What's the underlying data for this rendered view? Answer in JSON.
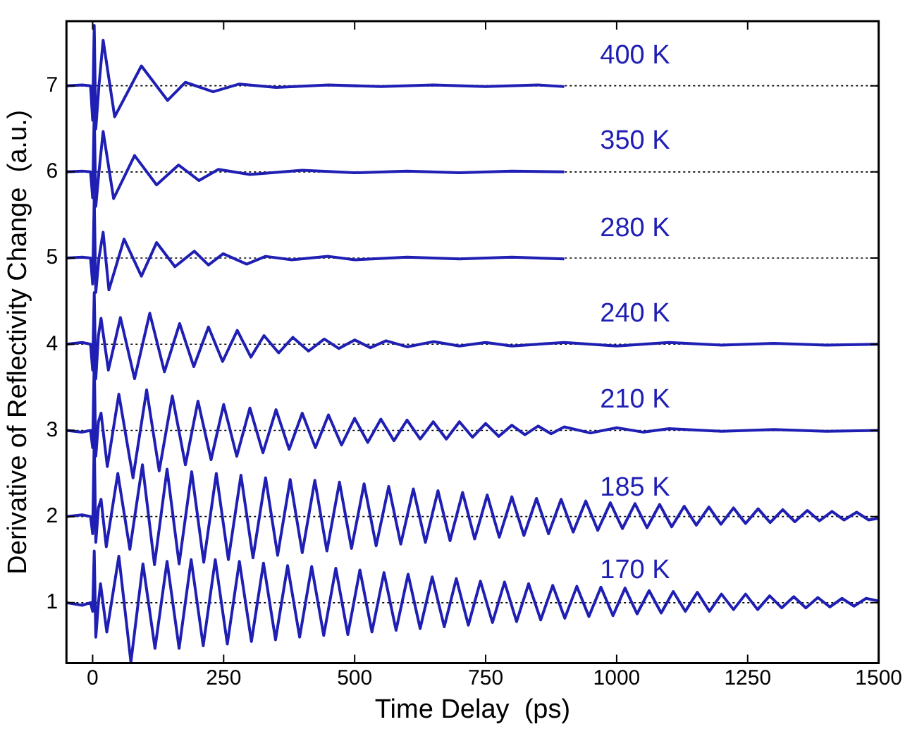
{
  "chart_data": {
    "type": "line",
    "xlabel": "Time Delay  (ps)",
    "ylabel": "Derivative of Reflectivity Change  (a.u.)",
    "xlim": [
      -50,
      1500
    ],
    "ylim": [
      0.3,
      7.75
    ],
    "xticks": [
      0,
      250,
      500,
      750,
      1000,
      1250,
      1500
    ],
    "yticks": [
      1,
      2,
      3,
      4,
      5,
      6,
      7
    ],
    "grid": false,
    "legend": false,
    "marker": "none",
    "line_style": "solid",
    "ref_lines": [
      {
        "axis": "y",
        "value": 1,
        "color": "#000000",
        "line_style": "dotted"
      },
      {
        "axis": "y",
        "value": 2,
        "color": "#000000",
        "line_style": "dotted"
      },
      {
        "axis": "y",
        "value": 3,
        "color": "#000000",
        "line_style": "dotted"
      },
      {
        "axis": "y",
        "value": 4,
        "color": "#000000",
        "line_style": "dotted"
      },
      {
        "axis": "y",
        "value": 5,
        "color": "#000000",
        "line_style": "dotted"
      },
      {
        "axis": "y",
        "value": 6,
        "color": "#000000",
        "line_style": "dotted"
      },
      {
        "axis": "y",
        "value": 7,
        "color": "#000000",
        "line_style": "dotted"
      }
    ],
    "series": [
      {
        "name": "170 K",
        "color": "#1f1fb4",
        "x": [
          -50,
          -20,
          -4,
          0,
          3,
          6,
          11,
          15,
          27,
          50,
          73,
          96,
          119,
          142,
          165,
          188,
          211,
          234,
          257,
          280,
          303,
          326,
          349,
          372,
          395,
          418,
          441,
          464,
          487,
          510,
          533,
          556,
          579,
          602,
          625,
          648,
          671,
          694,
          717,
          740,
          763,
          786,
          809,
          832,
          855,
          878,
          901,
          924,
          947,
          970,
          993,
          1016,
          1039,
          1062,
          1085,
          1108,
          1131,
          1154,
          1177,
          1200,
          1223,
          1246,
          1269,
          1292,
          1315,
          1338,
          1361,
          1384,
          1407,
          1430,
          1453,
          1476,
          1500
        ],
        "values": [
          1,
          0.97,
          1,
          0.9,
          1.6,
          0.6,
          1.0,
          1.22,
          0.66,
          1.54,
          0.31,
          1.45,
          0.47,
          1.48,
          0.47,
          1.5,
          0.5,
          1.5,
          0.52,
          1.48,
          0.55,
          1.46,
          0.57,
          1.43,
          0.6,
          1.42,
          0.62,
          1.4,
          0.63,
          1.38,
          0.66,
          1.35,
          0.68,
          1.33,
          0.7,
          1.3,
          0.72,
          1.28,
          0.74,
          1.25,
          0.77,
          1.24,
          0.78,
          1.22,
          0.8,
          1.2,
          0.82,
          1.19,
          0.84,
          1.18,
          0.85,
          1.17,
          0.87,
          1.14,
          0.88,
          1.13,
          0.9,
          1.12,
          0.9,
          1.1,
          0.92,
          1.1,
          0.92,
          1.08,
          0.94,
          1.07,
          0.94,
          1.06,
          0.95,
          1.05,
          0.96,
          1.05,
          1.02
        ]
      },
      {
        "name": "185 K",
        "color": "#1f1fb4",
        "x": [
          -50,
          -20,
          -4,
          0,
          3,
          6,
          11,
          16,
          26,
          48,
          71,
          95,
          118,
          142,
          165,
          189,
          212,
          236,
          259,
          283,
          306,
          330,
          353,
          377,
          400,
          424,
          447,
          471,
          494,
          518,
          541,
          565,
          588,
          612,
          635,
          659,
          682,
          706,
          729,
          753,
          776,
          800,
          823,
          847,
          870,
          894,
          917,
          941,
          964,
          988,
          1011,
          1035,
          1058,
          1082,
          1105,
          1129,
          1152,
          1176,
          1199,
          1223,
          1246,
          1270,
          1293,
          1317,
          1340,
          1364,
          1387,
          1411,
          1434,
          1458,
          1481,
          1500
        ],
        "values": [
          2,
          2.02,
          2,
          1.8,
          2.9,
          1.7,
          2.1,
          2.2,
          1.65,
          2.5,
          1.62,
          2.6,
          1.44,
          2.55,
          1.45,
          2.52,
          1.47,
          2.5,
          1.5,
          2.48,
          1.52,
          2.45,
          1.55,
          2.43,
          1.58,
          2.42,
          1.6,
          2.4,
          1.63,
          2.38,
          1.66,
          2.35,
          1.68,
          2.32,
          1.7,
          2.3,
          1.72,
          2.28,
          1.74,
          2.25,
          1.76,
          2.23,
          1.78,
          2.21,
          1.8,
          2.2,
          1.82,
          2.18,
          1.84,
          2.16,
          1.86,
          2.15,
          1.87,
          2.14,
          1.88,
          2.12,
          1.9,
          2.11,
          1.91,
          2.1,
          1.92,
          2.09,
          1.93,
          2.08,
          1.94,
          2.07,
          1.95,
          2.06,
          1.96,
          2.05,
          1.96,
          1.98
        ]
      },
      {
        "name": "210 K",
        "color": "#1f1fb4",
        "x": [
          -50,
          -20,
          -4,
          0,
          3,
          6,
          11,
          16,
          28,
          50,
          77,
          103,
          127,
          152,
          177,
          201,
          226,
          250,
          275,
          300,
          325,
          350,
          375,
          400,
          425,
          450,
          475,
          500,
          525,
          550,
          575,
          600,
          625,
          650,
          675,
          700,
          725,
          750,
          775,
          800,
          825,
          850,
          875,
          900,
          950,
          1000,
          1050,
          1100,
          1200,
          1300,
          1400,
          1500
        ],
        "values": [
          3,
          2.98,
          3,
          2.8,
          3.8,
          2.7,
          3.1,
          3.2,
          2.58,
          3.42,
          2.45,
          3.47,
          2.53,
          3.4,
          2.6,
          3.34,
          2.66,
          3.3,
          2.7,
          3.26,
          2.74,
          3.24,
          2.78,
          3.2,
          2.8,
          3.18,
          2.83,
          3.14,
          2.86,
          3.13,
          2.88,
          3.12,
          2.9,
          3.1,
          2.9,
          3.1,
          2.92,
          3.08,
          2.93,
          3.06,
          2.95,
          3.05,
          2.96,
          3.04,
          2.97,
          3.03,
          2.98,
          3.02,
          2.99,
          3.01,
          2.99,
          3.0
        ]
      },
      {
        "name": "240 K",
        "color": "#1f1fb4",
        "x": [
          -50,
          -20,
          -4,
          0,
          3,
          6,
          11,
          16,
          30,
          53,
          80,
          109,
          137,
          166,
          193,
          221,
          248,
          276,
          302,
          327,
          355,
          382,
          412,
          442,
          470,
          500,
          530,
          560,
          600,
          650,
          700,
          750,
          800,
          900,
          1000,
          1100,
          1200,
          1300,
          1400,
          1500
        ],
        "values": [
          4,
          4.02,
          4,
          3.7,
          4.6,
          3.6,
          4.1,
          4.3,
          3.7,
          4.31,
          3.6,
          4.36,
          3.68,
          4.24,
          3.74,
          4.2,
          3.8,
          4.16,
          3.85,
          4.1,
          3.9,
          4.08,
          3.92,
          4.06,
          3.95,
          4.05,
          3.96,
          4.04,
          3.97,
          4.03,
          3.98,
          4.02,
          3.98,
          4.02,
          3.98,
          4.02,
          3.99,
          4.01,
          3.99,
          4.0
        ]
      },
      {
        "name": "280 K",
        "color": "#1f1fb4",
        "x": [
          -50,
          -20,
          -4,
          0,
          3,
          6,
          12,
          20,
          31,
          60,
          93,
          122,
          157,
          194,
          221,
          249,
          294,
          330,
          380,
          450,
          500,
          600,
          700,
          800,
          900
        ],
        "values": [
          5,
          5.01,
          5,
          4.7,
          5.7,
          4.6,
          5.0,
          5.3,
          4.63,
          5.22,
          4.79,
          5.18,
          4.9,
          5.08,
          4.92,
          5.05,
          4.93,
          5.02,
          4.98,
          5.02,
          4.98,
          5.01,
          4.99,
          5.01,
          4.99
        ]
      },
      {
        "name": "350 K",
        "color": "#1f1fb4",
        "x": [
          -50,
          -20,
          -4,
          0,
          3,
          6,
          12,
          20,
          40,
          80,
          122,
          164,
          203,
          240,
          300,
          400,
          500,
          600,
          700,
          800,
          900
        ],
        "values": [
          6,
          6.01,
          6,
          5.7,
          6.7,
          5.6,
          6.0,
          6.47,
          5.69,
          6.19,
          5.85,
          6.08,
          5.9,
          6.03,
          5.97,
          6.02,
          5.99,
          6.01,
          5.99,
          6.01,
          6.0
        ]
      },
      {
        "name": "400 K",
        "color": "#1f1fb4",
        "x": [
          -50,
          -20,
          -4,
          0,
          3,
          6,
          12,
          20,
          42,
          93,
          143,
          177,
          230,
          280,
          350,
          450,
          550,
          650,
          750,
          850,
          900
        ],
        "values": [
          7,
          7.01,
          7,
          6.6,
          7.7,
          6.5,
          7.0,
          7.53,
          6.64,
          7.23,
          6.83,
          7.04,
          6.93,
          7.02,
          6.98,
          7.01,
          6.99,
          7.01,
          6.99,
          7.01,
          6.99
        ]
      }
    ]
  }
}
